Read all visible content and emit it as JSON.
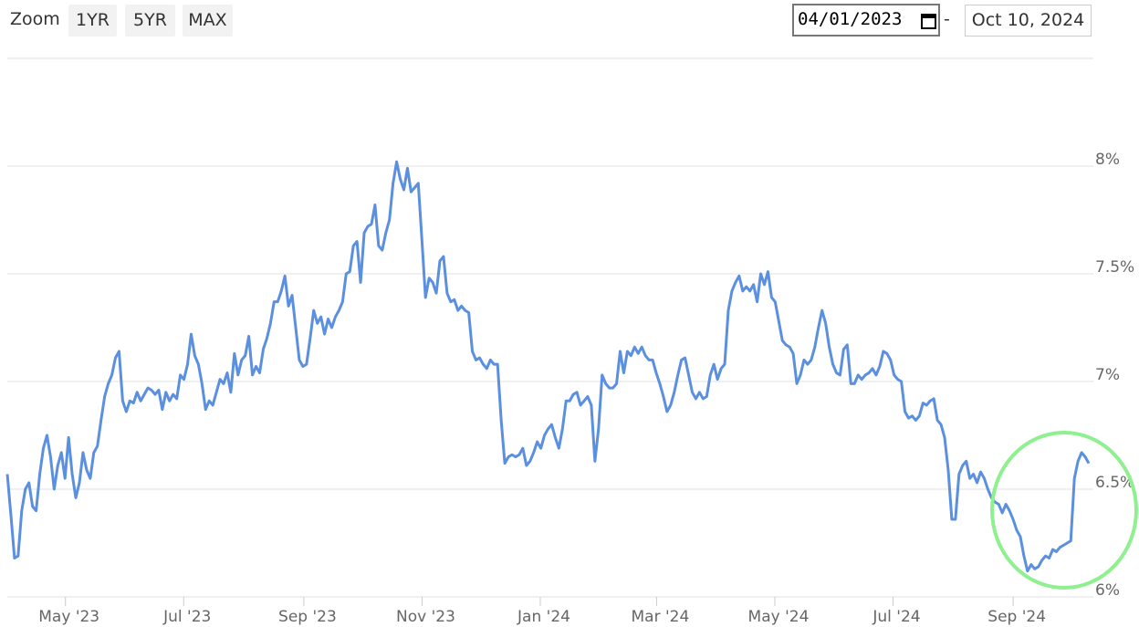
{
  "controls": {
    "zoom_label": "Zoom",
    "buttons": [
      "1YR",
      "5YR",
      "MAX"
    ],
    "range_from": "04/01/2023",
    "range_separator": "-",
    "range_to": "Oct 10, 2024"
  },
  "chart_data": {
    "type": "line",
    "xlim": [
      "2023-04-01",
      "2024-10-10"
    ],
    "xticks": [
      {
        "value": "2023-05",
        "label": "May '23"
      },
      {
        "value": "2023-07",
        "label": "Jul '23"
      },
      {
        "value": "2023-09",
        "label": "Sep '23"
      },
      {
        "value": "2023-11",
        "label": "Nov '23"
      },
      {
        "value": "2024-01",
        "label": "Jan '24"
      },
      {
        "value": "2024-03",
        "label": "Mar '24"
      },
      {
        "value": "2024-05",
        "label": "May '24"
      },
      {
        "value": "2024-07",
        "label": "Jul '24"
      },
      {
        "value": "2024-09",
        "label": "Sep '24"
      }
    ],
    "ylim": [
      6,
      8.5
    ],
    "yticks": [
      {
        "value": 6,
        "label": "6%"
      },
      {
        "value": 6.5,
        "label": "6.5%"
      },
      {
        "value": 7,
        "label": "7%"
      },
      {
        "value": 7.5,
        "label": "7.5%"
      },
      {
        "value": 8,
        "label": "8%"
      }
    ],
    "grid": true,
    "series": [
      {
        "color": "#5b8fdf",
        "values": [
          6.57,
          6.38,
          6.18,
          6.19,
          6.4,
          6.5,
          6.53,
          6.42,
          6.4,
          6.57,
          6.69,
          6.75,
          6.65,
          6.5,
          6.61,
          6.67,
          6.55,
          6.74,
          6.57,
          6.46,
          6.53,
          6.67,
          6.59,
          6.55,
          6.67,
          6.7,
          6.82,
          6.93,
          6.99,
          7.03,
          7.11,
          7.14,
          6.91,
          6.86,
          6.91,
          6.9,
          6.95,
          6.91,
          6.94,
          6.97,
          6.96,
          6.94,
          6.96,
          6.87,
          6.95,
          6.91,
          6.94,
          6.92,
          7.03,
          7.01,
          7.08,
          7.22,
          7.12,
          7.08,
          6.99,
          6.87,
          6.91,
          6.89,
          6.95,
          7.01,
          6.99,
          7.04,
          6.95,
          7.13,
          7.03,
          7.1,
          7.12,
          7.21,
          7.03,
          7.07,
          7.04,
          7.15,
          7.2,
          7.27,
          7.37,
          7.37,
          7.42,
          7.49,
          7.35,
          7.4,
          7.25,
          7.1,
          7.07,
          7.08,
          7.2,
          7.33,
          7.27,
          7.3,
          7.22,
          7.29,
          7.25,
          7.3,
          7.33,
          7.37,
          7.5,
          7.51,
          7.63,
          7.65,
          7.46,
          7.69,
          7.72,
          7.73,
          7.82,
          7.63,
          7.61,
          7.69,
          7.75,
          7.92,
          8.02,
          7.94,
          7.89,
          7.99,
          7.88,
          7.9,
          7.92,
          7.66,
          7.39,
          7.48,
          7.46,
          7.41,
          7.56,
          7.58,
          7.41,
          7.37,
          7.38,
          7.33,
          7.35,
          7.33,
          7.32,
          7.14,
          7.1,
          7.11,
          7.08,
          7.06,
          7.1,
          7.08,
          7.08,
          6.82,
          6.62,
          6.65,
          6.66,
          6.65,
          6.66,
          6.69,
          6.61,
          6.63,
          6.67,
          6.72,
          6.69,
          6.75,
          6.78,
          6.8,
          6.74,
          6.69,
          6.78,
          6.91,
          6.91,
          6.94,
          6.95,
          6.89,
          6.91,
          6.93,
          6.89,
          6.63,
          6.78,
          7.03,
          6.99,
          6.97,
          6.97,
          6.99,
          7.14,
          7.04,
          7.14,
          7.12,
          7.16,
          7.13,
          7.16,
          7.12,
          7.1,
          7.1,
          7.04,
          6.99,
          6.93,
          6.86,
          6.89,
          6.95,
          7.03,
          7.1,
          7.11,
          7.03,
          6.95,
          6.92,
          6.95,
          6.92,
          6.93,
          7.03,
          7.08,
          7.01,
          7.06,
          7.08,
          7.33,
          7.42,
          7.46,
          7.49,
          7.42,
          7.44,
          7.42,
          7.45,
          7.37,
          7.5,
          7.45,
          7.51,
          7.39,
          7.37,
          7.28,
          7.19,
          7.17,
          7.16,
          7.13,
          6.99,
          7.03,
          7.1,
          7.08,
          7.1,
          7.16,
          7.25,
          7.33,
          7.27,
          7.16,
          7.08,
          7.04,
          7.03,
          7.15,
          7.17,
          6.99,
          6.99,
          7.03,
          7.01,
          7.03,
          7.04,
          7.06,
          7.03,
          7.07,
          7.14,
          7.13,
          7.1,
          7.03,
          7.01,
          7.0,
          6.86,
          6.83,
          6.84,
          6.82,
          6.84,
          6.9,
          6.89,
          6.91,
          6.92,
          6.82,
          6.8,
          6.74,
          6.59,
          6.36,
          6.36,
          6.57,
          6.61,
          6.63,
          6.55,
          6.57,
          6.53,
          6.58,
          6.55,
          6.5,
          6.46,
          6.44,
          6.43,
          6.39,
          6.43,
          6.4,
          6.36,
          6.31,
          6.28,
          6.19,
          6.12,
          6.15,
          6.13,
          6.14,
          6.17,
          6.19,
          6.18,
          6.22,
          6.21,
          6.23,
          6.24,
          6.25,
          6.26,
          6.55,
          6.63,
          6.67,
          6.65,
          6.62
        ]
      }
    ]
  }
}
